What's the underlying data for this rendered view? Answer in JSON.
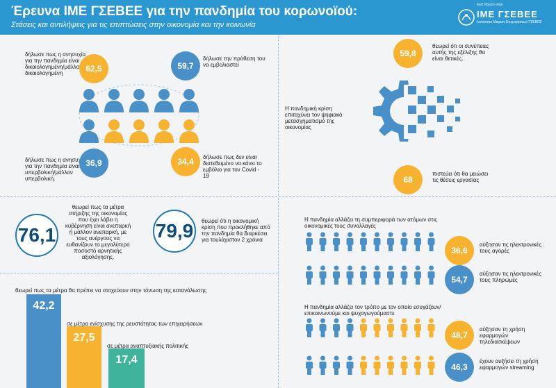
{
  "header": {
    "title": "Έρευνα ΙΜΕ ΓΣΕΒΕΕ για την πανδημία του κορωνοϊού:",
    "subtitle": "Στάσεις και αντιλήψεις για τις επιπτώσεις στην οικονομία και την κοινωνία",
    "logo_small": "Ένα Πρώτο στην",
    "logo_name": "ΙΜΕ ΓΣΕΒΕΕ",
    "logo_tagline": "Ινστιτούτο Μικρών Επιχειρήσεων ΓΣΕΒΕΕ"
  },
  "colors": {
    "blue": "#4a90c8",
    "orange": "#f7b330",
    "green": "#3fb39b",
    "header": "#2a97d0"
  },
  "panel1": {
    "stats": [
      {
        "value": "62,5",
        "text": "δήλωσε πως η ανησυχία για την πανδημία είναι δικαιολογημένη/μάλλον δικαιολογημένη",
        "color": "orange"
      },
      {
        "value": "59,7",
        "text": "δήλωσε την πρόθεση του να εμβολιαστεί",
        "color": "blue"
      },
      {
        "value": "36,9",
        "text": "δήλωσε πως η ανησυχία για την πανδημία είναι υπερβολική/μάλλον υπερβολική.",
        "color": "blue"
      },
      {
        "value": "34,4",
        "text": "δήλωσε πως δεν είναι διατεθειμένο να κάνει το εμβόλιο για τον Covid - 19",
        "color": "orange"
      }
    ]
  },
  "panel2": {
    "top_value": "59,8",
    "top_text": "θεωρεί ότι οι συνέπειες αυτής της εξέλιξης θα είναι θετικές.",
    "middle_text": "Η πανδημική κρίση επιταχύνει τον ψηφιακό μετασχηματισμό της οικονομίας",
    "bottom_value": "68",
    "bottom_text": "πιστεύει ότι θα μειώσει τις θέσεις εργασίας"
  },
  "panel3": {
    "left_value": "76,1",
    "left_text": "θεωρεί πως τα μέτρα στήριξης της οικονομίας που έχει λάβει η κυβέρνηση είναι ανεπαρκή ή μάλλον ανεπαρκή, με τους ανέργους να ευθανίζουν το μεγαλύτερο ποσοστό αρνητικής αξιολόγησης.",
    "right_value": "79,9",
    "right_text": "θεωρεί ότι η οικονομική κρίση που προκλήθηκε από την πανδημία θα διαρκέσει για τουλάχιστον 2 χρόνια"
  },
  "panel4": {
    "heading": "θεωρεί πως τα μέτρα θα πρέπει να στοχεύουν στην τόνωση της κατανάλωσης",
    "bars": [
      {
        "value": "42,2",
        "label": ""
      },
      {
        "value": "27,5",
        "label": "σε μέτρα ενίσχυσης της ρευστότητας των επιχειρήσεων"
      },
      {
        "value": "17,4",
        "label": "σε μέτρα αναπτυξιακής πολιτικής"
      }
    ]
  },
  "panel5": {
    "heading1": "Η πανδημία αλλάζει τη συμπεριφορά των ατόμων στις οικονομικές τους συναλλαγές",
    "rows1": [
      {
        "value": "36,6",
        "text": "αύξησαν τις ηλεκτρονικές τους αγορές"
      },
      {
        "value": "54,7",
        "text": "αύξησαν τις ηλεκτρονικές τους πληρωμές"
      }
    ],
    "heading2": "Η πανδημία αλλάζει τον τρόπο με τον οποίο εσυχάζουν/επικοινωνούμε και ψυχαγωγούμαστε",
    "rows2": [
      {
        "value": "48,7",
        "text": "αύξησαν τη χρήση εφαρμογών τηλεδιασκέψεων"
      },
      {
        "value": "46,3",
        "text": "έχουν αυξήσει τη χρήση εφαρμογών streaming"
      }
    ]
  }
}
